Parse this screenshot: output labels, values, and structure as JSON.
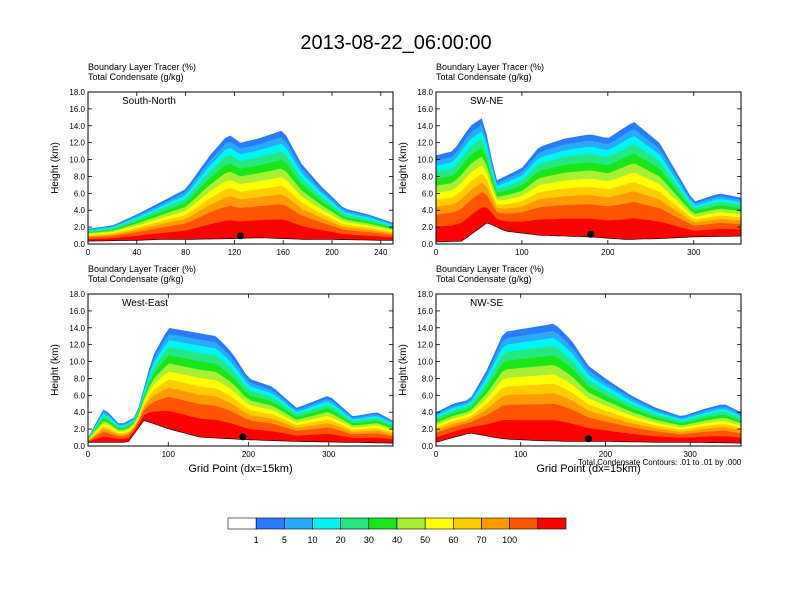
{
  "title": "2013-08-22_06:00:00",
  "footnote": "Total Condensate Contours: .01 to .01 by .000",
  "chart_data": [
    {
      "type": "heatmap",
      "panel_label": "South-North",
      "title_line1": "Boundary Layer Tracer   (%)",
      "title_line2": "Total Condensate   (g/kg)",
      "ylabel": "Height (km)",
      "xlabel": "",
      "xlim": [
        0,
        250
      ],
      "xticks": [
        0,
        40,
        80,
        120,
        160,
        200,
        240
      ],
      "ylim": [
        0,
        18
      ],
      "yticks": [
        "0.0",
        "2.0",
        "4.0",
        "6.0",
        "8.0",
        "10.0",
        "12.0",
        "14.0",
        "16.0",
        "18.0"
      ],
      "marker_x": 125,
      "terrain": [
        [
          0,
          0.3
        ],
        [
          20,
          0.35
        ],
        [
          40,
          0.4
        ],
        [
          60,
          0.5
        ],
        [
          80,
          0.5
        ],
        [
          100,
          0.55
        ],
        [
          120,
          0.6
        ],
        [
          140,
          0.7
        ],
        [
          160,
          0.6
        ],
        [
          180,
          0.5
        ],
        [
          200,
          0.5
        ],
        [
          220,
          0.45
        ],
        [
          240,
          0.4
        ],
        [
          250,
          0.4
        ]
      ],
      "tracer_top_km": [
        [
          0,
          1.8
        ],
        [
          20,
          2.2
        ],
        [
          40,
          3.5
        ],
        [
          60,
          5.0
        ],
        [
          80,
          6.5
        ],
        [
          100,
          10.5
        ],
        [
          115,
          13.0
        ],
        [
          125,
          12.0
        ],
        [
          140,
          12.5
        ],
        [
          160,
          13.5
        ],
        [
          175,
          9.5
        ],
        [
          190,
          7.0
        ],
        [
          210,
          4.2
        ],
        [
          230,
          3.5
        ],
        [
          250,
          2.5
        ]
      ]
    },
    {
      "type": "heatmap",
      "panel_label": "SW-NE",
      "title_line1": "Boundary Layer Tracer   (%)",
      "title_line2": "Total Condensate   (g/kg)",
      "ylabel": "Height (km)",
      "xlabel": "",
      "xlim": [
        0,
        355
      ],
      "xticks": [
        0,
        100,
        200,
        300
      ],
      "ylim": [
        0,
        18
      ],
      "yticks": [
        "0.0",
        "2.0",
        "4.0",
        "6.0",
        "8.0",
        "10.0",
        "12.0",
        "14.0",
        "16.0",
        "18.0"
      ],
      "marker_x": 180,
      "terrain": [
        [
          0,
          0.2
        ],
        [
          30,
          0.3
        ],
        [
          60,
          2.5
        ],
        [
          80,
          1.5
        ],
        [
          120,
          1.0
        ],
        [
          180,
          0.8
        ],
        [
          220,
          0.5
        ],
        [
          260,
          0.6
        ],
        [
          300,
          0.8
        ],
        [
          355,
          0.9
        ]
      ],
      "tracer_top_km": [
        [
          0,
          10.5
        ],
        [
          20,
          11.0
        ],
        [
          40,
          14.0
        ],
        [
          55,
          15.0
        ],
        [
          70,
          7.5
        ],
        [
          100,
          9.0
        ],
        [
          120,
          11.5
        ],
        [
          150,
          12.5
        ],
        [
          180,
          13.0
        ],
        [
          200,
          12.5
        ],
        [
          230,
          14.5
        ],
        [
          260,
          12.0
        ],
        [
          280,
          8.5
        ],
        [
          300,
          5.0
        ],
        [
          330,
          6.0
        ],
        [
          355,
          5.5
        ]
      ]
    },
    {
      "type": "heatmap",
      "panel_label": "West-East",
      "title_line1": "Boundary Layer Tracer   (%)",
      "title_line2": "Total Condensate   (g/kg)",
      "ylabel": "Height (km)",
      "xlabel": "Grid Point (dx=15km)",
      "xlim": [
        0,
        380
      ],
      "xticks": [
        0,
        100,
        200,
        300
      ],
      "ylim": [
        0,
        18
      ],
      "yticks": [
        "0.0",
        "2.0",
        "4.0",
        "6.0",
        "8.0",
        "10.0",
        "12.0",
        "14.0",
        "16.0",
        "18.0"
      ],
      "marker_x": 193,
      "terrain": [
        [
          0,
          0.4
        ],
        [
          50,
          0.4
        ],
        [
          70,
          3.0
        ],
        [
          100,
          2.0
        ],
        [
          140,
          1.0
        ],
        [
          200,
          0.7
        ],
        [
          260,
          0.5
        ],
        [
          320,
          0.4
        ],
        [
          380,
          0.3
        ]
      ],
      "tracer_top_km": [
        [
          0,
          1.0
        ],
        [
          20,
          4.5
        ],
        [
          40,
          2.5
        ],
        [
          60,
          3.5
        ],
        [
          80,
          10.5
        ],
        [
          100,
          14.0
        ],
        [
          130,
          13.5
        ],
        [
          160,
          13.0
        ],
        [
          180,
          11.0
        ],
        [
          200,
          8.0
        ],
        [
          230,
          7.0
        ],
        [
          260,
          4.5
        ],
        [
          300,
          6.0
        ],
        [
          330,
          3.5
        ],
        [
          360,
          4.0
        ],
        [
          380,
          3.0
        ]
      ]
    },
    {
      "type": "heatmap",
      "panel_label": "NW-SE",
      "title_line1": "Boundary Layer Tracer   (%)",
      "title_line2": "Total Condensate   (g/kg)",
      "ylabel": "Height (km)",
      "xlabel": "Grid Point (dx=15km)",
      "xlim": [
        0,
        360
      ],
      "xticks": [
        0,
        100,
        200,
        300
      ],
      "ylim": [
        0,
        18
      ],
      "yticks": [
        "0.0",
        "2.0",
        "4.0",
        "6.0",
        "8.0",
        "10.0",
        "12.0",
        "14.0",
        "16.0",
        "18.0"
      ],
      "marker_x": 180,
      "terrain": [
        [
          0,
          0.4
        ],
        [
          40,
          1.5
        ],
        [
          80,
          0.8
        ],
        [
          120,
          0.6
        ],
        [
          160,
          0.5
        ],
        [
          200,
          0.5
        ],
        [
          260,
          0.4
        ],
        [
          300,
          0.4
        ],
        [
          360,
          0.3
        ]
      ],
      "tracer_top_km": [
        [
          0,
          4.0
        ],
        [
          20,
          5.0
        ],
        [
          40,
          5.5
        ],
        [
          60,
          9.0
        ],
        [
          80,
          13.5
        ],
        [
          110,
          14.0
        ],
        [
          140,
          14.5
        ],
        [
          160,
          12.5
        ],
        [
          180,
          9.5
        ],
        [
          200,
          8.0
        ],
        [
          230,
          6.0
        ],
        [
          260,
          4.5
        ],
        [
          290,
          3.5
        ],
        [
          320,
          4.5
        ],
        [
          340,
          5.0
        ],
        [
          360,
          4.0
        ]
      ]
    }
  ],
  "colorbar": {
    "levels": [
      "1",
      "5",
      "10",
      "20",
      "30",
      "40",
      "50",
      "60",
      "70",
      "100"
    ],
    "colors": [
      "#ffffff",
      "#2b7bff",
      "#28aaff",
      "#00f5f5",
      "#26e882",
      "#19e619",
      "#a8f033",
      "#ffff00",
      "#ffcc00",
      "#ff9900",
      "#ff5500",
      "#ff0000"
    ]
  }
}
